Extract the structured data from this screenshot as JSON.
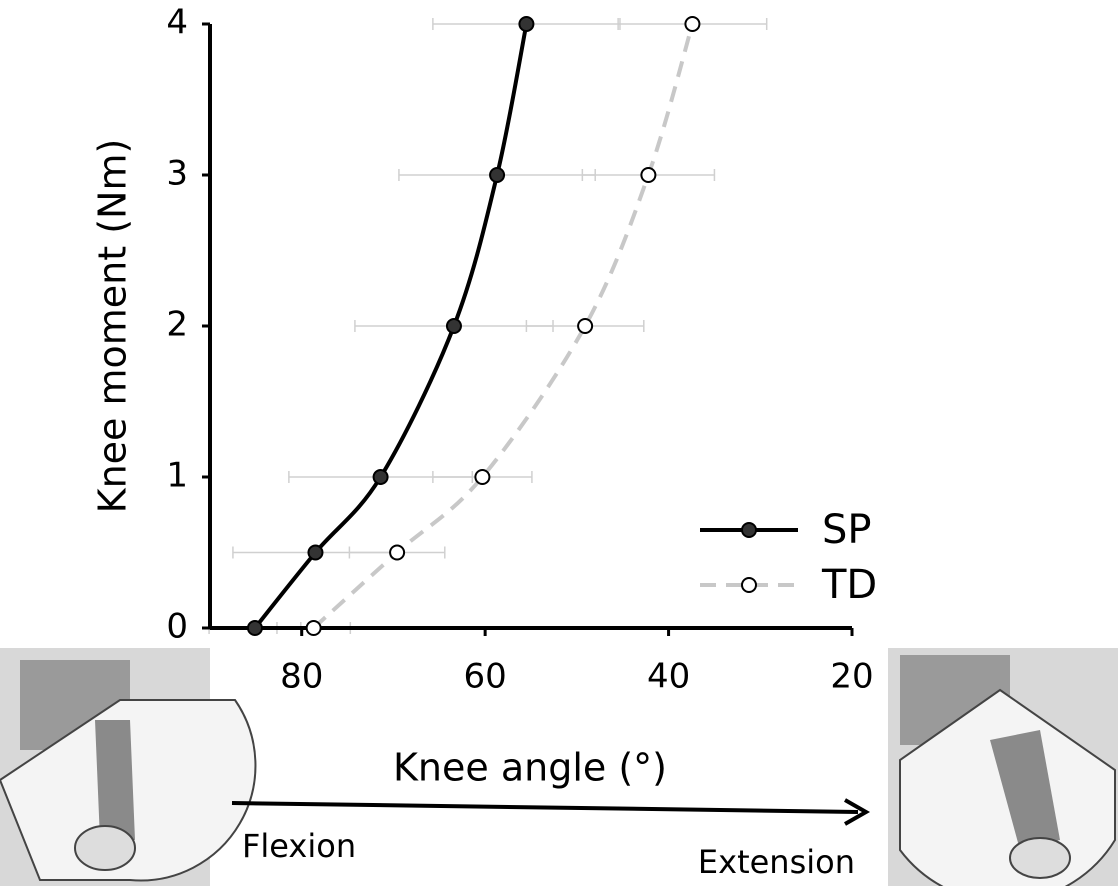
{
  "chart_data": {
    "type": "line",
    "y_label": "Knee moment (Nm)",
    "x_label": "Knee angle (°)",
    "xlim": [
      90,
      20
    ],
    "xticks": [
      80,
      60,
      40,
      20
    ],
    "ylim": [
      0,
      4
    ],
    "yticks": [
      0,
      1,
      2,
      3,
      4
    ],
    "legend": "lower right",
    "series": [
      {
        "name": "SP",
        "color": "#000000",
        "style": "solid",
        "marker": "filled",
        "x": [
          85.1,
          78.5,
          71.4,
          63.4,
          58.7,
          55.5
        ],
        "xerr": [
          5,
          9,
          10,
          10.8,
          10.7,
          10.2
        ],
        "values": [
          0,
          0.5,
          1,
          2,
          3,
          4
        ]
      },
      {
        "name": "TD",
        "color": "#c8c8c8",
        "style": "dashed",
        "marker": "open",
        "x": [
          78.7,
          69.6,
          60.3,
          49.1,
          42.2,
          37.4
        ],
        "xerr": [
          4,
          5.2,
          5.4,
          6.4,
          7.2,
          8.1
        ],
        "values": [
          0,
          0.5,
          1,
          2,
          3,
          4
        ]
      }
    ],
    "annotations": [
      "Flexion",
      "Extension"
    ]
  }
}
